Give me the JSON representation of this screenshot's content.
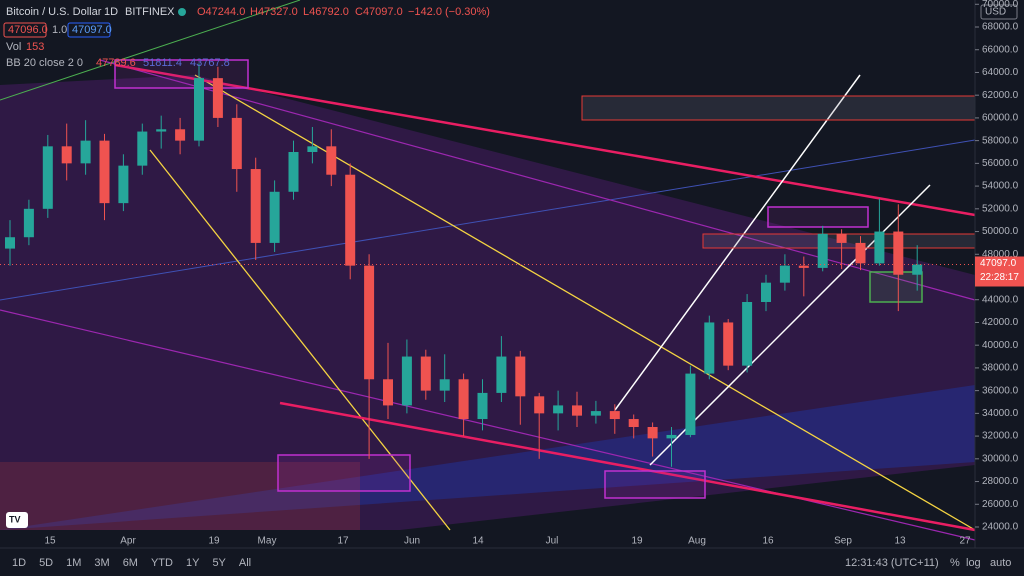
{
  "header": {
    "symbol": "Bitcoin / U.S. Dollar",
    "interval": "1D",
    "exchange": "BITFINEX",
    "open": "O47244.0",
    "high": "H47327.0",
    "low": "L46792.0",
    "close": "C47097.0",
    "change": "−142.0 (−0.30%)",
    "bid": "47096.0",
    "spread": "1.0",
    "ask": "47097.0"
  },
  "indicators": {
    "vol_name": "Vol",
    "vol_value": "153",
    "bb_name": "BB 20 close 2 0",
    "bb_mid": "47789.6",
    "bb_upper": "51811.4",
    "bb_lower": "43767.8"
  },
  "price_axis": {
    "currency": "USD",
    "last_price": "47097.0",
    "countdown": "22:28:17",
    "ticks": [
      {
        "value": 24000,
        "label": "24000.0"
      },
      {
        "value": 26000,
        "label": "26000.0"
      },
      {
        "value": 28000,
        "label": "28000.0"
      },
      {
        "value": 30000,
        "label": "30000.0"
      },
      {
        "value": 32000,
        "label": "32000.0"
      },
      {
        "value": 34000,
        "label": "34000.0"
      },
      {
        "value": 36000,
        "label": "36000.0"
      },
      {
        "value": 38000,
        "label": "38000.0"
      },
      {
        "value": 40000,
        "label": "40000.0"
      },
      {
        "value": 42000,
        "label": "42000.0"
      },
      {
        "value": 44000,
        "label": "44000.0"
      },
      {
        "value": 46000,
        "label": "46000.0"
      },
      {
        "value": 48000,
        "label": "48000.0"
      },
      {
        "value": 50000,
        "label": "50000.0"
      },
      {
        "value": 52000,
        "label": "52000.0"
      },
      {
        "value": 54000,
        "label": "54000.0"
      },
      {
        "value": 56000,
        "label": "56000.0"
      },
      {
        "value": 58000,
        "label": "58000.0"
      },
      {
        "value": 60000,
        "label": "60000.0"
      },
      {
        "value": 62000,
        "label": "62000.0"
      },
      {
        "value": 64000,
        "label": "64000.0"
      },
      {
        "value": 66000,
        "label": "66000.0"
      },
      {
        "value": 68000,
        "label": "68000.0"
      },
      {
        "value": 70000,
        "label": "70000.0"
      }
    ]
  },
  "time_axis": [
    "15",
    "Apr",
    "19",
    "May",
    "17",
    "Jun",
    "14",
    "Jul",
    "19",
    "Aug",
    "16",
    "Sep",
    "13",
    "27"
  ],
  "chart": {
    "candles": [
      [
        48500,
        51000,
        47000,
        49500
      ],
      [
        49500,
        52800,
        48800,
        52000
      ],
      [
        52000,
        58500,
        51200,
        57500
      ],
      [
        57500,
        59500,
        54500,
        56000
      ],
      [
        56000,
        59800,
        55000,
        58000
      ],
      [
        58000,
        58600,
        51000,
        52500
      ],
      [
        52500,
        56800,
        51800,
        55800
      ],
      [
        55800,
        59500,
        55000,
        58800
      ],
      [
        58800,
        60200,
        57300,
        59000
      ],
      [
        59000,
        60000,
        56800,
        58000
      ],
      [
        58000,
        64800,
        57500,
        63500
      ],
      [
        63500,
        64500,
        59200,
        60000
      ],
      [
        60000,
        61200,
        53500,
        55500
      ],
      [
        55500,
        56500,
        47500,
        49000
      ],
      [
        49000,
        54500,
        48200,
        53500
      ],
      [
        53500,
        58000,
        52800,
        57000
      ],
      [
        57000,
        59200,
        56000,
        57500
      ],
      [
        57500,
        59000,
        54000,
        55000
      ],
      [
        55000,
        56000,
        45800,
        47000
      ],
      [
        47000,
        48000,
        30000,
        37000
      ],
      [
        37000,
        40200,
        33500,
        34700
      ],
      [
        34700,
        40500,
        34000,
        39000
      ],
      [
        39000,
        39600,
        35200,
        36000
      ],
      [
        36000,
        39200,
        35000,
        37000
      ],
      [
        37000,
        37500,
        32000,
        33500
      ],
      [
        33500,
        37000,
        32500,
        35800
      ],
      [
        35800,
        40800,
        35000,
        39000
      ],
      [
        39000,
        39500,
        33000,
        35500
      ],
      [
        35500,
        35800,
        30000,
        34000
      ],
      [
        34000,
        36000,
        32500,
        34700
      ],
      [
        34700,
        35900,
        32800,
        33800
      ],
      [
        33800,
        35100,
        33100,
        34200
      ],
      [
        34200,
        34800,
        32200,
        33500
      ],
      [
        33500,
        33900,
        31800,
        32800
      ],
      [
        32800,
        33200,
        30200,
        31800
      ],
      [
        31800,
        32800,
        29300,
        32100
      ],
      [
        32100,
        38200,
        31900,
        37500
      ],
      [
        37500,
        42600,
        37000,
        42000
      ],
      [
        42000,
        42300,
        37800,
        38200
      ],
      [
        38200,
        44500,
        37600,
        43800
      ],
      [
        43800,
        46200,
        43000,
        45500
      ],
      [
        45500,
        48000,
        44800,
        47000
      ],
      [
        47000,
        47800,
        44300,
        46800
      ],
      [
        46800,
        50500,
        46500,
        49800
      ],
      [
        49800,
        50200,
        46700,
        49000
      ],
      [
        49000,
        49600,
        46600,
        47200
      ],
      [
        47200,
        52900,
        47000,
        50000
      ],
      [
        50000,
        52400,
        43000,
        46200
      ],
      [
        46200,
        48800,
        44800,
        47100
      ]
    ]
  },
  "toolbar": {
    "ranges": [
      "1D",
      "5D",
      "1M",
      "3M",
      "6M",
      "YTD",
      "1Y",
      "5Y",
      "All"
    ],
    "clock": "12:31:43 (UTC+11)",
    "percent": "%",
    "log": "log",
    "auto": "auto"
  }
}
